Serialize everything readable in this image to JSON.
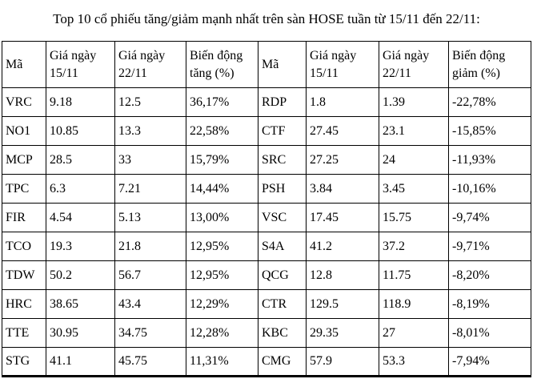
{
  "title": "Top 10 cổ phiếu tăng/giảm mạnh nhất trên sàn HOSE tuần từ 15/11 đến 22/11:",
  "table": {
    "columns": [
      {
        "label": "Mã"
      },
      {
        "label": "Giá ngày 15/11"
      },
      {
        "label": "Giá ngày 22/11"
      },
      {
        "label": "Biến động tăng (%)"
      },
      {
        "label": "Mã"
      },
      {
        "label": "Giá ngày 15/11"
      },
      {
        "label": "Giá ngày 22/11"
      },
      {
        "label": "Biến động giảm (%)"
      }
    ],
    "rows": [
      {
        "gainer": {
          "code": "VRC",
          "price_15_11": "9.18",
          "price_22_11": "12.5",
          "change": "36,17%"
        },
        "loser": {
          "code": "RDP",
          "price_15_11": "1.8",
          "price_22_11": "1.39",
          "change": "-22,78%"
        }
      },
      {
        "gainer": {
          "code": "NO1",
          "price_15_11": "10.85",
          "price_22_11": "13.3",
          "change": "22,58%"
        },
        "loser": {
          "code": "CTF",
          "price_15_11": "27.45",
          "price_22_11": "23.1",
          "change": "-15,85%"
        }
      },
      {
        "gainer": {
          "code": "MCP",
          "price_15_11": "28.5",
          "price_22_11": "33",
          "change": "15,79%"
        },
        "loser": {
          "code": "SRC",
          "price_15_11": "27.25",
          "price_22_11": "24",
          "change": "-11,93%"
        }
      },
      {
        "gainer": {
          "code": "TPC",
          "price_15_11": "6.3",
          "price_22_11": "7.21",
          "change": "14,44%"
        },
        "loser": {
          "code": "PSH",
          "price_15_11": "3.84",
          "price_22_11": "3.45",
          "change": "-10,16%"
        }
      },
      {
        "gainer": {
          "code": "FIR",
          "price_15_11": "4.54",
          "price_22_11": "5.13",
          "change": "13,00%"
        },
        "loser": {
          "code": "VSC",
          "price_15_11": "17.45",
          "price_22_11": "15.75",
          "change": "-9,74%"
        }
      },
      {
        "gainer": {
          "code": "TCO",
          "price_15_11": "19.3",
          "price_22_11": "21.8",
          "change": "12,95%"
        },
        "loser": {
          "code": "S4A",
          "price_15_11": "41.2",
          "price_22_11": "37.2",
          "change": "-9,71%"
        }
      },
      {
        "gainer": {
          "code": "TDW",
          "price_15_11": "50.2",
          "price_22_11": "56.7",
          "change": "12,95%"
        },
        "loser": {
          "code": "QCG",
          "price_15_11": "12.8",
          "price_22_11": "11.75",
          "change": "-8,20%"
        }
      },
      {
        "gainer": {
          "code": "HRC",
          "price_15_11": "38.65",
          "price_22_11": "43.4",
          "change": "12,29%"
        },
        "loser": {
          "code": "CTR",
          "price_15_11": "129.5",
          "price_22_11": "118.9",
          "change": "-8,19%"
        }
      },
      {
        "gainer": {
          "code": "TTE",
          "price_15_11": "30.95",
          "price_22_11": "34.75",
          "change": "12,28%"
        },
        "loser": {
          "code": "KBC",
          "price_15_11": "29.35",
          "price_22_11": "27",
          "change": "-8,01%"
        }
      },
      {
        "gainer": {
          "code": "STG",
          "price_15_11": "41.1",
          "price_22_11": "45.75",
          "change": "11,31%"
        },
        "loser": {
          "code": "CMG",
          "price_15_11": "57.9",
          "price_22_11": "53.3",
          "change": "-7,94%"
        }
      }
    ]
  }
}
